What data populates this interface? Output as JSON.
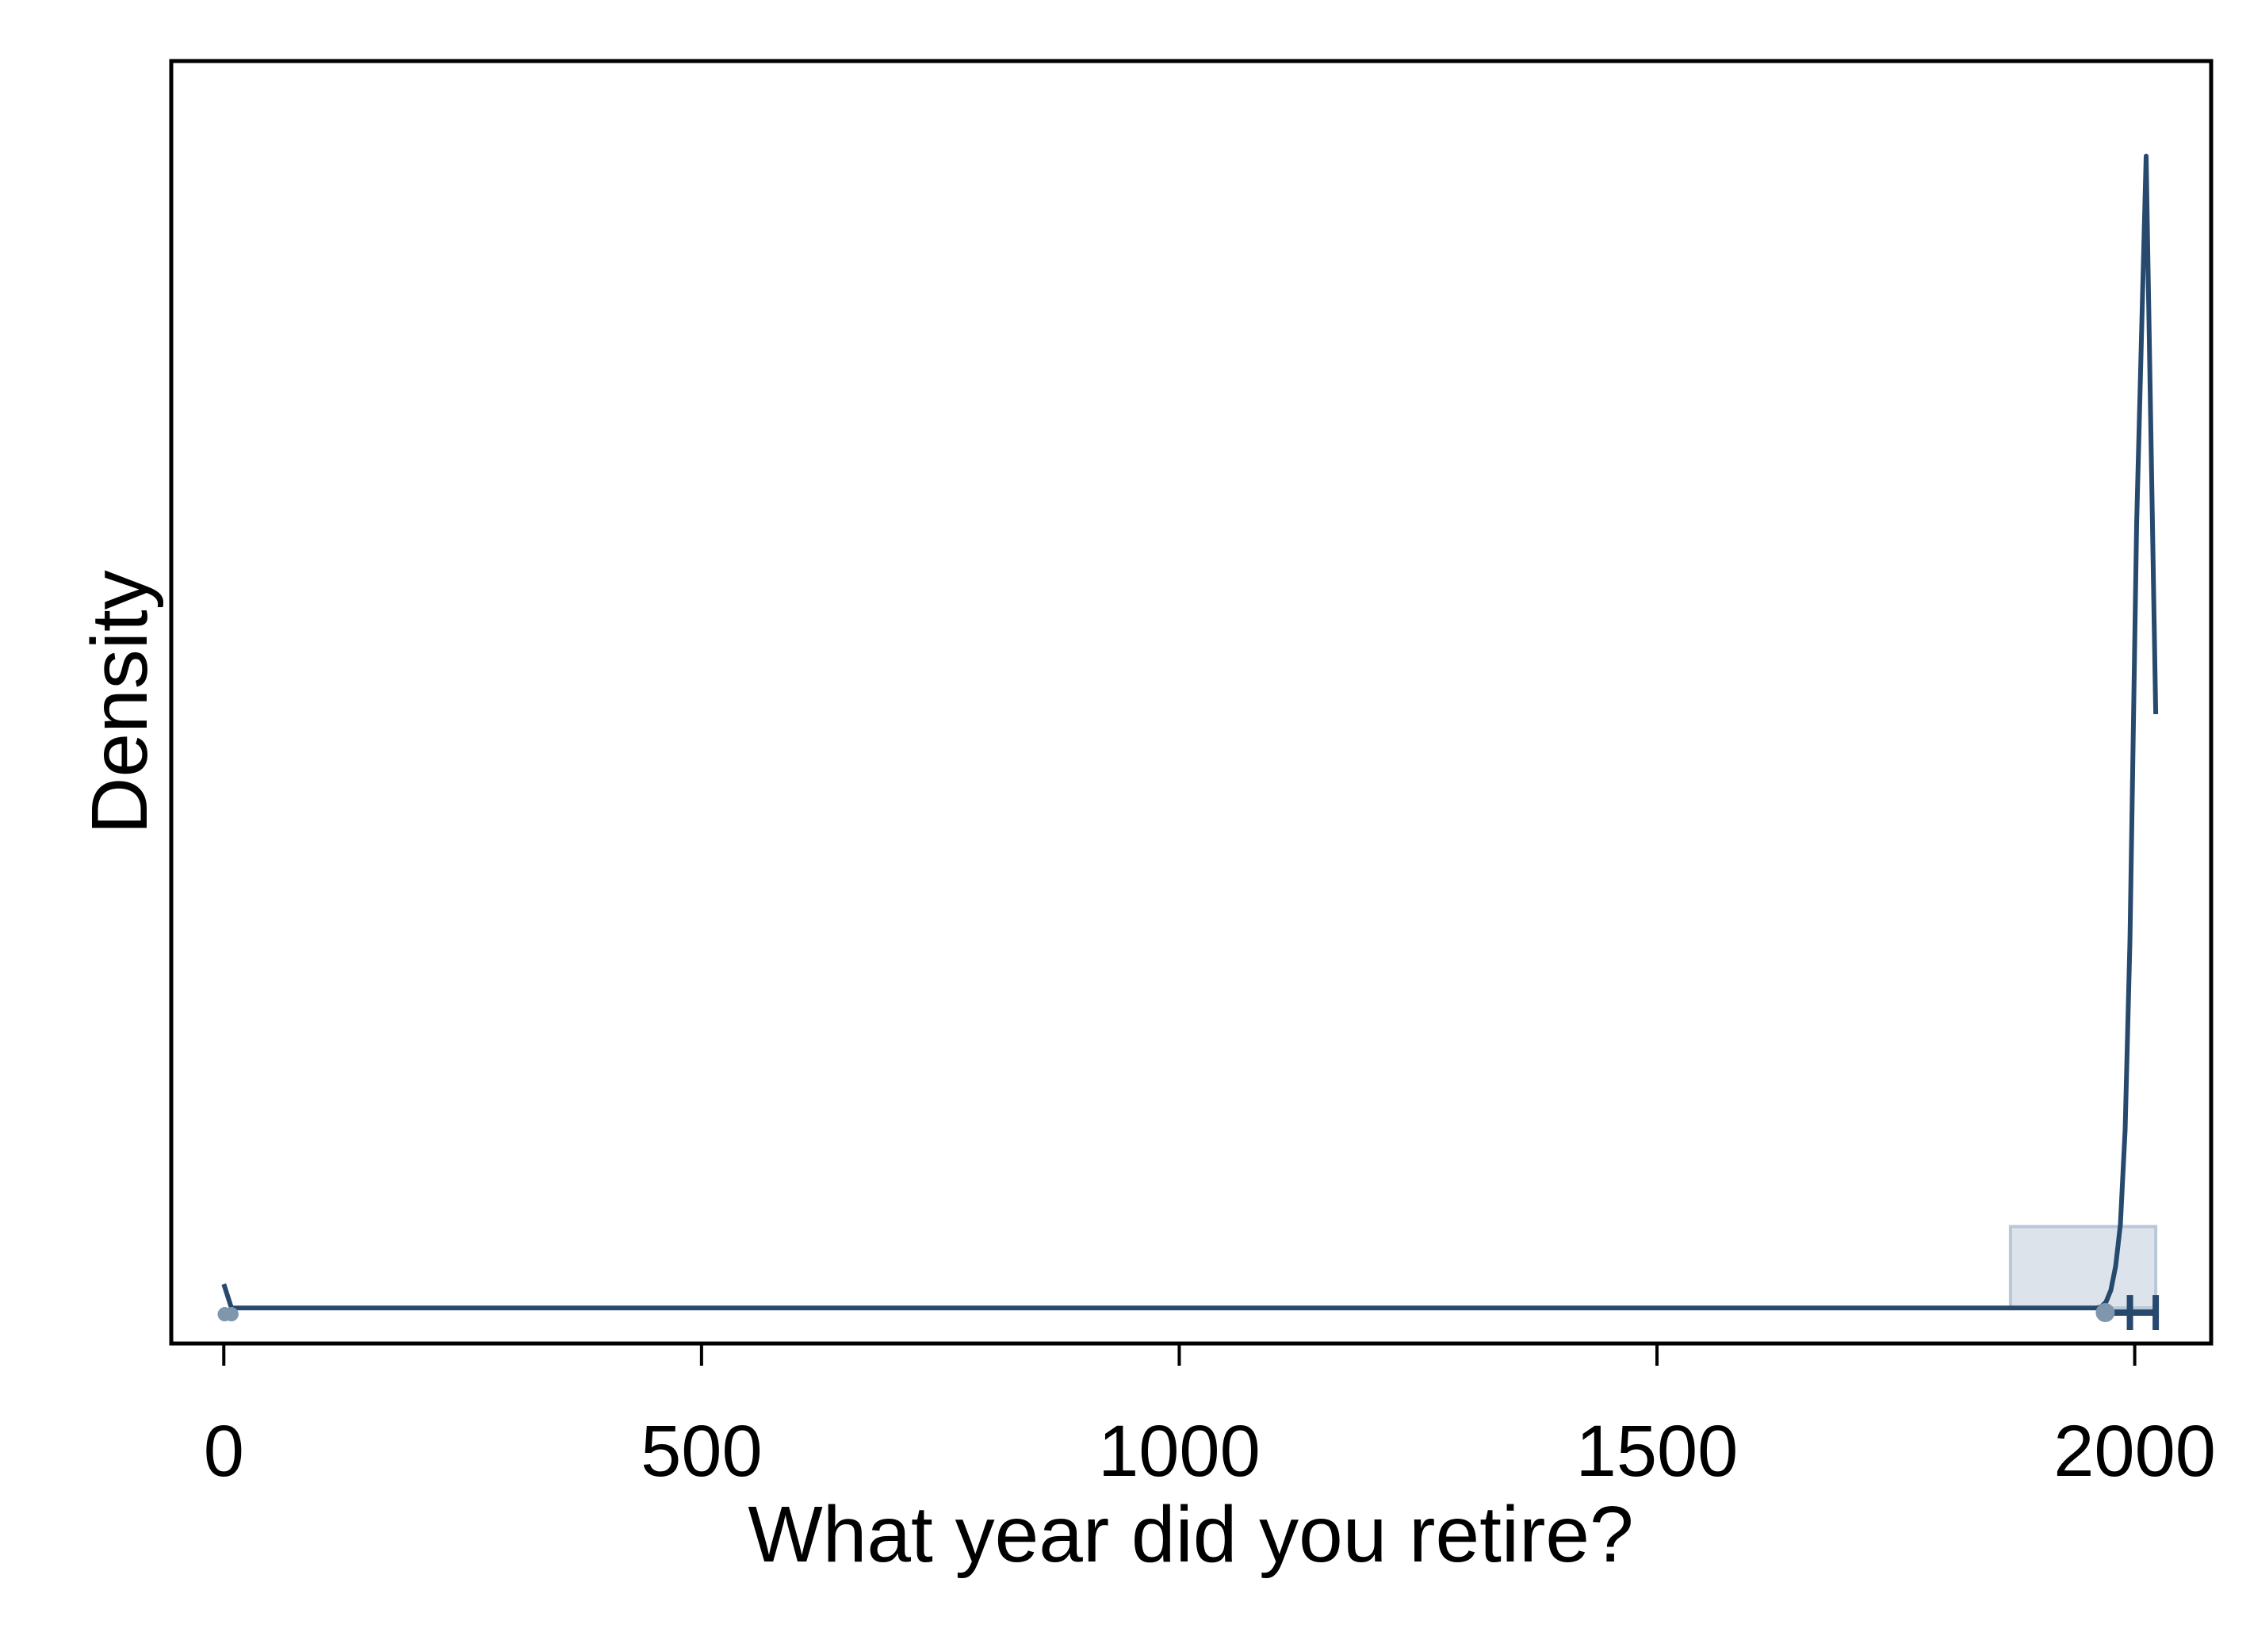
{
  "chart_data": {
    "type": "density",
    "title": "",
    "xlabel": "What year did you retire?",
    "ylabel": "Density",
    "xlim": [
      -55,
      2080
    ],
    "x_ticks": [
      0,
      500,
      1000,
      1500,
      2000
    ],
    "y_tick_labels_shown": false,
    "grid": false,
    "legend": "none",
    "colors": {
      "line": "#27496d",
      "fill": "#dce3eb",
      "fill_stroke": "#b9c8d6",
      "marker": "#27496d",
      "marker_light": "#7f96ad",
      "axis": "#000000"
    },
    "histogram_bins": [
      {
        "x0": 1870,
        "x1": 2022,
        "density": 0.000685
      }
    ],
    "density_curve": {
      "x": [
        0,
        8,
        1960,
        1965,
        1970,
        1975,
        1980,
        1985,
        1990,
        1995,
        2002,
        2012,
        2022
      ],
      "y": [
        0.0002,
        0,
        0,
        1e-05,
        5e-05,
        0.00015,
        0.00035,
        0.0007,
        0.0015,
        0.0031,
        0.0066,
        0.0097,
        0.005
      ]
    },
    "density_ylim": [
      -0.0003,
      0.0105
    ],
    "box_plot": {
      "markers_x": [
        1,
        8,
        1965,
        1995,
        2020
      ],
      "whisker_x": [
        1960,
        2022
      ],
      "median_x": 1995
    }
  }
}
